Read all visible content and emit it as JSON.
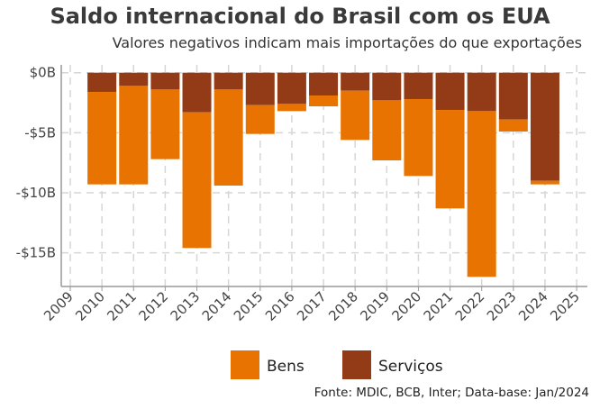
{
  "chart_data": {
    "type": "bar",
    "stacked": true,
    "title": "Saldo internacional do Brasil com os EUA",
    "subtitle": "Valores negativos indicam mais importações do que exportações",
    "xlabel": "",
    "ylabel": "",
    "categories": [
      2010,
      2011,
      2012,
      2013,
      2014,
      2015,
      2016,
      2017,
      2018,
      2019,
      2020,
      2021,
      2022,
      2023,
      2024
    ],
    "series": [
      {
        "name": "Serviços",
        "color": "#933b16",
        "values": [
          -1.6,
          -1.1,
          -1.4,
          -3.3,
          -1.4,
          -2.7,
          -2.6,
          -1.9,
          -1.5,
          -2.3,
          -2.2,
          -3.1,
          -3.2,
          -3.9,
          -9.0
        ]
      },
      {
        "name": "Bens",
        "color": "#e97300",
        "values": [
          -7.7,
          -8.2,
          -5.8,
          -11.3,
          -8.0,
          -2.4,
          -0.6,
          -0.9,
          -4.1,
          -5.0,
          -6.4,
          -8.2,
          -13.8,
          -1.0,
          -0.3
        ]
      }
    ],
    "x_ticks": [
      "2009",
      "2010",
      "2011",
      "2012",
      "2013",
      "2014",
      "2015",
      "2016",
      "2017",
      "2018",
      "2019",
      "2020",
      "2021",
      "2022",
      "2023",
      "2024",
      "2025"
    ],
    "y_ticks": [
      {
        "value": 0,
        "label": "$0B"
      },
      {
        "value": -5,
        "label": "-$5B"
      },
      {
        "value": -10,
        "label": "-$10B"
      },
      {
        "value": -15,
        "label": "-$15B"
      }
    ],
    "ylim": [
      -17.8,
      0.8
    ],
    "xlim": [
      2009,
      2025
    ],
    "grid": true,
    "legend": {
      "placement": "bottom",
      "items": [
        "Bens",
        "Serviços"
      ]
    },
    "source": "Fonte: MDIC, BCB, Inter; Data-base: Jan/2024"
  }
}
